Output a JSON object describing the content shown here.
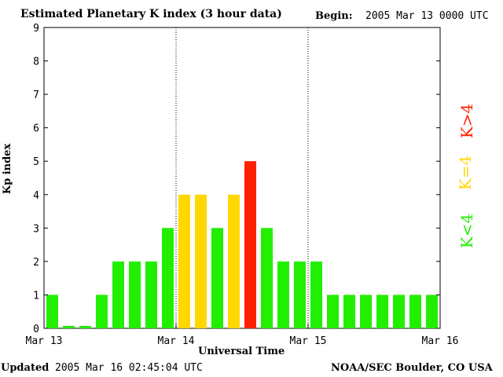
{
  "header": {
    "title": "Estimated Planetary K index (3 hour data)",
    "begin_label": "Begin:",
    "begin_value": "2005 Mar 13 0000 UTC"
  },
  "footer": {
    "updated_label": "Updated",
    "updated_value": "2005 Mar 16 02:45:04 UTC",
    "org": "NOAA/SEC Boulder, CO USA"
  },
  "legend": {
    "low": "K<4",
    "eq": "K=4",
    "high": "K>4"
  },
  "colors": {
    "low": "#22ee00",
    "eq": "#ffd800",
    "high": "#ff2000"
  },
  "chart_data": {
    "type": "bar",
    "title": "Estimated Planetary K index (3 hour data)",
    "xlabel": "Universal Time",
    "ylabel": "Kp index",
    "ylim": [
      0,
      9
    ],
    "yticks": [
      "0",
      "1",
      "2",
      "3",
      "4",
      "5",
      "6",
      "7",
      "8",
      "9"
    ],
    "xticks": [
      "Mar 13",
      "Mar 14",
      "Mar 15",
      "Mar 16"
    ],
    "values": [
      1,
      0,
      0,
      1,
      2,
      2,
      2,
      3,
      4,
      4,
      3,
      4,
      5,
      3,
      2,
      2,
      2,
      1,
      1,
      1,
      1,
      1,
      1,
      1
    ]
  }
}
